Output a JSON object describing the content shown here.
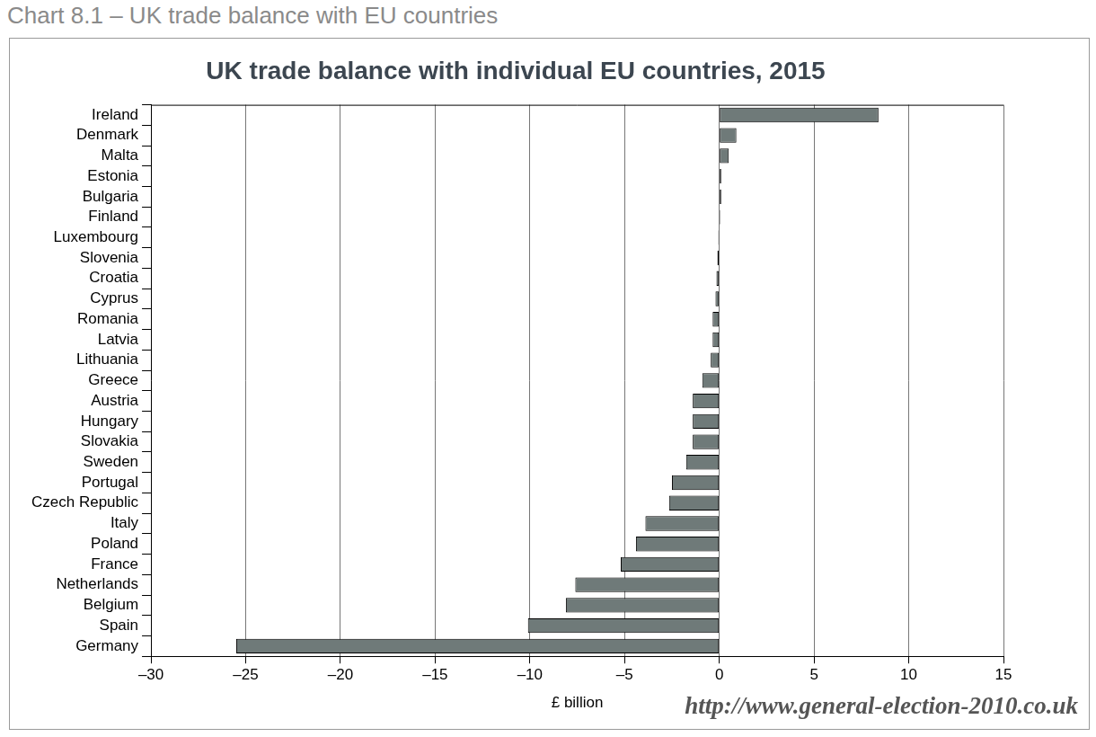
{
  "header": {
    "title": "Chart 8.1 – UK trade balance with EU countries"
  },
  "chart_data": {
    "type": "bar",
    "orientation": "horizontal",
    "title": "UK trade balance with individual EU countries, 2015",
    "x_label": "£ billion",
    "annotations": [
      "http://www.general-election-2010.co.uk"
    ],
    "categories": [
      "Ireland",
      "Denmark",
      "Malta",
      "Estonia",
      "Bulgaria",
      "Finland",
      "Luxembourg",
      "Slovenia",
      "Croatia",
      "Cyprus",
      "Romania",
      "Latvia",
      "Lithuania",
      "Greece",
      "Austria",
      "Hungary",
      "Slovakia",
      "Sweden",
      "Portugal",
      "Czech Republic",
      "Italy",
      "Poland",
      "France",
      "Netherlands",
      "Belgium",
      "Spain",
      "Germany"
    ],
    "values": [
      8.4,
      0.9,
      0.5,
      0.1,
      0.1,
      0.05,
      -0.05,
      -0.1,
      -0.15,
      -0.2,
      -0.35,
      -0.35,
      -0.45,
      -0.9,
      -1.4,
      -1.4,
      -1.4,
      -1.75,
      -2.5,
      -2.65,
      -3.9,
      -4.4,
      -5.2,
      -7.6,
      -8.1,
      -10.1,
      -25.5
    ],
    "color": "#6f7a79",
    "xlim": [
      -30,
      15
    ],
    "xticks": [
      {
        "value": -30,
        "label": "–30"
      },
      {
        "value": -25,
        "label": "–25"
      },
      {
        "value": -20,
        "label": "–20"
      },
      {
        "value": -15,
        "label": "–15"
      },
      {
        "value": -10,
        "label": "–10"
      },
      {
        "value": -5,
        "label": "–5"
      },
      0,
      5,
      10,
      15
    ],
    "grid": true
  }
}
